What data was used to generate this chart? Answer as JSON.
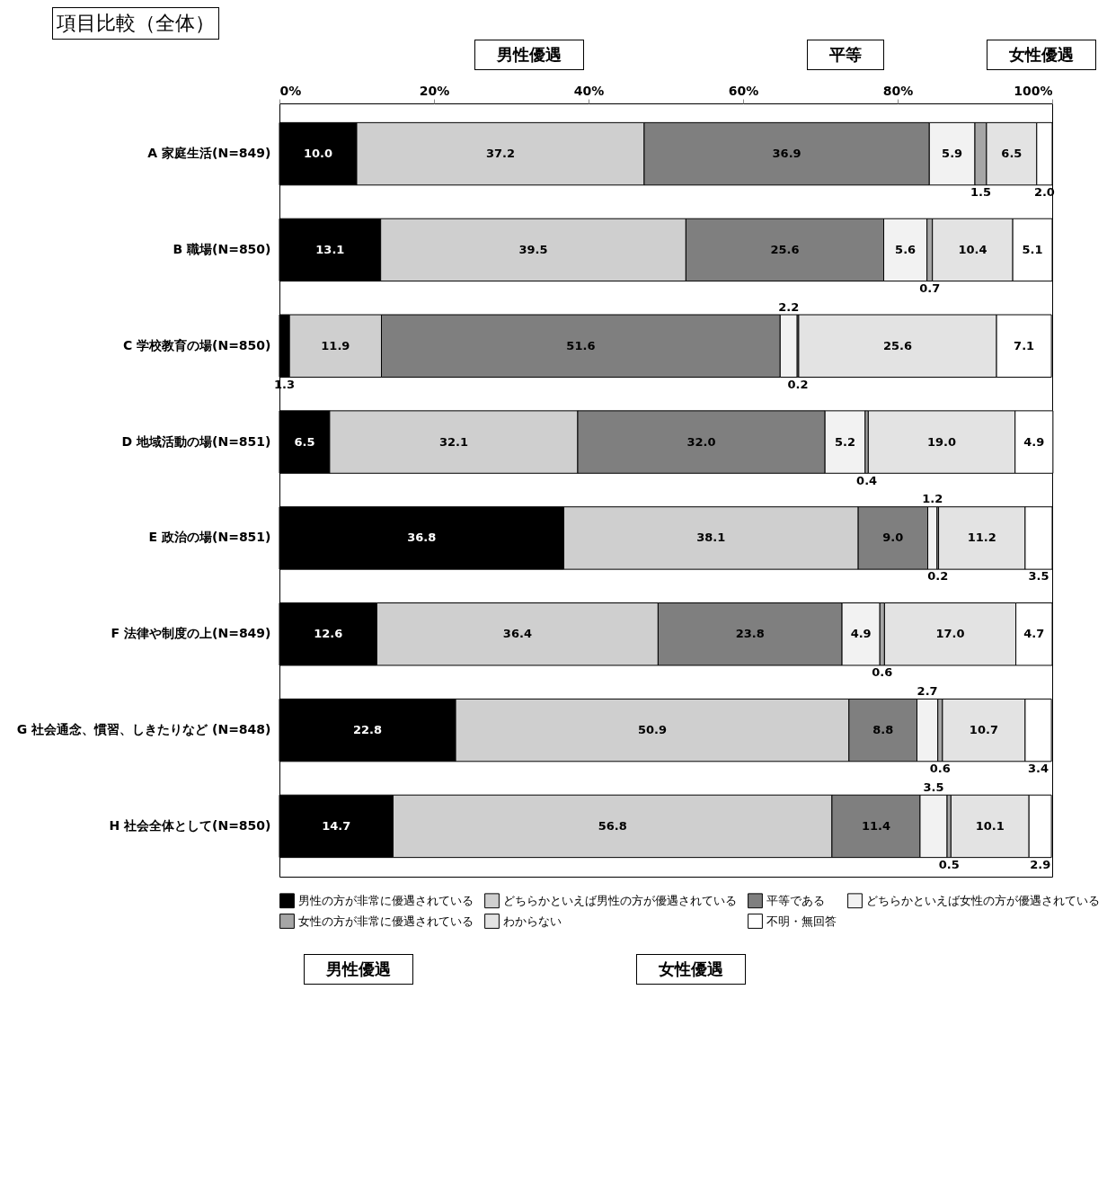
{
  "chart_data": {
    "type": "bar",
    "orientation": "horizontal",
    "stacked": true,
    "title": "項目比較（全体）",
    "categories": [
      "A 家庭生活(N=849)",
      "B 職場(N=850)",
      "C 学校教育の場(N=850)",
      "D 地域活動の場(N=851)",
      "E 政治の場(N=851)",
      "F 法律や制度の上(N=849)",
      "G 社会通念、慣習、しきたりなど (N=848)",
      "H 社会全体として(N=850)"
    ],
    "series": [
      {
        "name": "男性の方が非常に優遇されている",
        "color": "#000000",
        "values": [
          10.0,
          13.1,
          1.3,
          6.5,
          36.8,
          12.6,
          22.8,
          14.7
        ],
        "value_labels": [
          "10.0",
          "13.1",
          "1.3",
          "6.5",
          "36.8",
          "12.6",
          "22.8",
          "14.7"
        ]
      },
      {
        "name": "どちらかといえば男性の方が優遇されている",
        "color": "#cfcfcf",
        "values": [
          37.2,
          39.5,
          11.9,
          32.1,
          38.1,
          36.4,
          50.9,
          56.8
        ],
        "value_labels": [
          "37.2",
          "39.5",
          "11.9",
          "32.1",
          "38.1",
          "36.4",
          "50.9",
          "56.8"
        ]
      },
      {
        "name": "平等である",
        "color": "#7f7f7f",
        "values": [
          36.9,
          25.6,
          51.6,
          32.0,
          9.0,
          23.8,
          8.8,
          11.4
        ],
        "value_labels": [
          "36.9",
          "25.6",
          "51.6",
          "32.0",
          "9.0",
          "23.8",
          "8.8",
          "11.4"
        ]
      },
      {
        "name": "どちらかといえば女性の方が優遇されている",
        "color": "#f2f2f2",
        "values": [
          5.9,
          5.6,
          2.2,
          5.2,
          1.2,
          4.9,
          2.7,
          3.5
        ],
        "value_labels": [
          "5.9",
          "5.6",
          "2.2",
          "5.2",
          "1.2",
          "4.9",
          "2.7",
          "3.5"
        ]
      },
      {
        "name": "女性の方が非常に優遇されている",
        "color": "#a6a6a6",
        "values": [
          1.5,
          0.7,
          0.2,
          0.4,
          0.2,
          0.6,
          0.6,
          0.5
        ],
        "value_labels": [
          "1.5",
          "0.7",
          "0.2",
          "0.4",
          "0.2",
          "0.6",
          "0.6",
          "0.5"
        ]
      },
      {
        "name": "わからない",
        "color": "#e3e3e3",
        "values": [
          6.5,
          10.4,
          25.6,
          19.0,
          11.2,
          17.0,
          10.7,
          10.1
        ],
        "value_labels": [
          "6.5",
          "10.4",
          "25.6",
          "19.0",
          "11.2",
          "17.0",
          "10.7",
          "10.1"
        ]
      },
      {
        "name": "不明・無回答",
        "color": "#ffffff",
        "values": [
          2.0,
          5.1,
          7.1,
          4.9,
          3.5,
          4.7,
          3.4,
          2.9
        ],
        "value_labels": [
          "2.0",
          "5.1",
          "7.1",
          "4.9",
          "3.5",
          "4.7",
          "3.4",
          "2.9"
        ]
      }
    ],
    "xlim": [
      0,
      100
    ],
    "xticks": [
      {
        "value": 0,
        "label": "0%"
      },
      {
        "value": 20,
        "label": "20%"
      },
      {
        "value": 40,
        "label": "40%"
      },
      {
        "value": 60,
        "label": "60%"
      },
      {
        "value": 80,
        "label": "80%"
      },
      {
        "value": 100,
        "label": "100%"
      }
    ],
    "grid": false,
    "legend": "bottom",
    "annotations": [
      "男性優遇",
      "平等",
      "女性優遇",
      "男性優遇",
      "女性優遇"
    ]
  }
}
